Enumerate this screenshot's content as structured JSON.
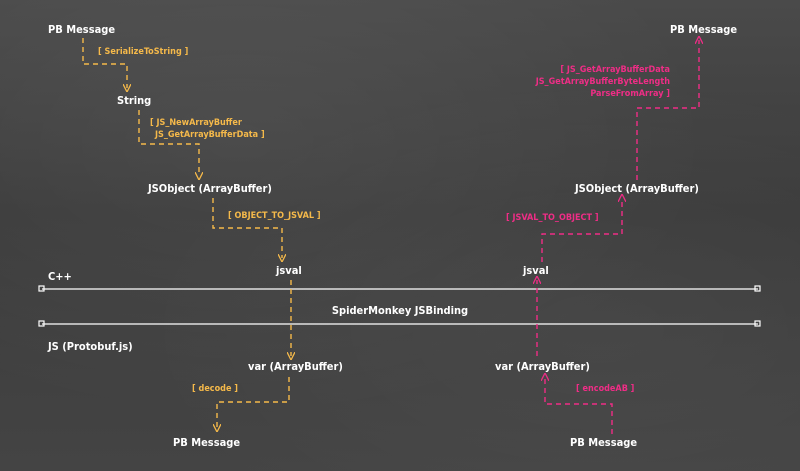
{
  "layers": {
    "cpp": "C++",
    "binding": "SpiderMonkey  JSBinding",
    "js": "JS (Protobuf.js)"
  },
  "decode_path": {
    "pb_message_top": "PB Message",
    "serialize": "[ SerializeToString ]",
    "string": "String",
    "new_buffer_1": "[ JS_NewArrayBuffer",
    "new_buffer_2": "JS_GetArrayBufferData ]",
    "jsobject": "JSObject (ArrayBuffer)",
    "object_to_jsval": "[ OBJECT_TO_JSVAL ]",
    "jsval": "jsval",
    "var_buffer": "var (ArrayBuffer)",
    "decode": "[ decode ]",
    "pb_message_bottom": "PB Message"
  },
  "encode_path": {
    "pb_message_bottom": "PB Message",
    "encodeab": "[ encodeAB ]",
    "var_buffer": "var (ArrayBuffer)",
    "jsval": "jsval",
    "jsval_to_object": "[ JSVAL_TO_OBJECT ]",
    "jsobject": "JSObject (ArrayBuffer)",
    "get_data_1": "[ JS_GetArrayBufferData",
    "get_data_2": "JS_GetArrayBufferByteLength",
    "get_data_3": "ParseFromArray ]",
    "pb_message_top": "PB Message"
  },
  "colors": {
    "decode_path": "#f5b94a",
    "encode_path": "#ef2d86",
    "text": "#ffffff",
    "background": "#3f3f3f"
  }
}
